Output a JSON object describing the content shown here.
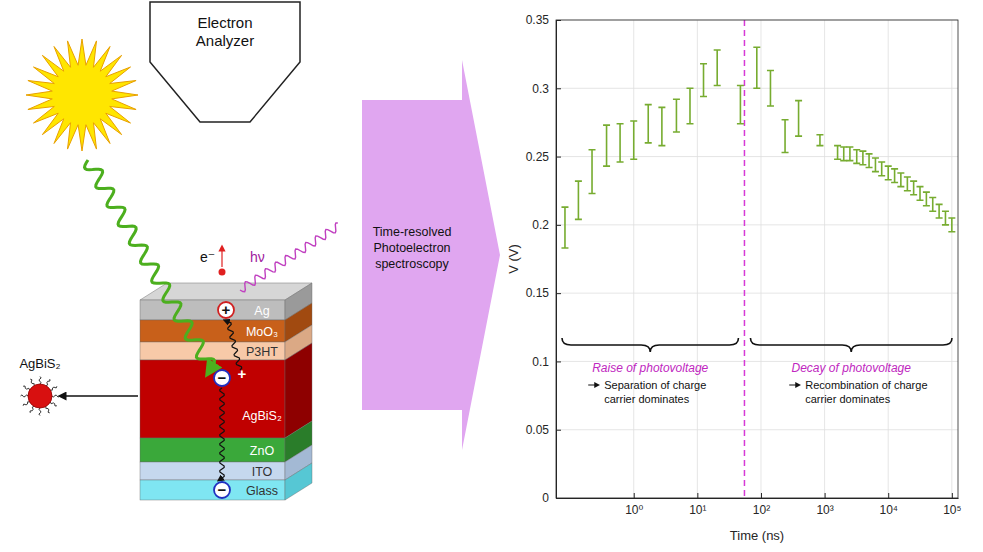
{
  "chart_data": {
    "type": "errorbar",
    "x_label": "Time (ns)",
    "y_label": "V (V)",
    "x": [
      0.083,
      0.135,
      0.221,
      0.374,
      0.61,
      1,
      1.69,
      2.77,
      4.69,
      7.66,
      12.5,
      20.5,
      47.5,
      86,
      141,
      239,
      390,
      845,
      1600,
      2000,
      2500,
      3200,
      4000,
      5000,
      6300,
      7900,
      10000,
      12600,
      15800,
      20000,
      25100,
      31600,
      39800,
      50100,
      63100,
      79400,
      100000
    ],
    "values": [
      0.198,
      0.218,
      0.239,
      0.258,
      0.26,
      0.262,
      0.274,
      0.272,
      0.28,
      0.287,
      0.306,
      0.315,
      0.288,
      0.315,
      0.3,
      0.265,
      0.278,
      0.262,
      0.253,
      0.252,
      0.252,
      0.25,
      0.249,
      0.247,
      0.244,
      0.241,
      0.238,
      0.236,
      0.233,
      0.23,
      0.227,
      0.223,
      0.219,
      0.215,
      0.21,
      0.205,
      0.2
    ],
    "errors": [
      0.015,
      0.014,
      0.016,
      0.015,
      0.014,
      0.014,
      0.014,
      0.014,
      0.012,
      0.013,
      0.012,
      0.013,
      0.014,
      0.015,
      0.013,
      0.012,
      0.013,
      0.004,
      0.005,
      0.005,
      0.005,
      0.005,
      0.005,
      0.005,
      0.005,
      0.005,
      0.005,
      0.005,
      0.005,
      0.005,
      0.005,
      0.005,
      0.005,
      0.005,
      0.005,
      0.005,
      0.005
    ],
    "color": "#77ac30",
    "log": "x",
    "grid": true,
    "xlim": [
      0.06,
      125000
    ],
    "xticks": [
      {
        "value": 1,
        "label": "10⁰"
      },
      {
        "value": 10,
        "label": "10¹"
      },
      {
        "value": 100,
        "label": "10²"
      },
      {
        "value": 1000,
        "label": "10³"
      },
      {
        "value": 10000,
        "label": "10⁴"
      },
      {
        "value": 100000,
        "label": "10⁵"
      }
    ],
    "ylim": [
      0,
      0.35
    ],
    "yticks": [
      0,
      0.05,
      0.1,
      0.15,
      0.2,
      0.25,
      0.3,
      0.35
    ],
    "vline": 55,
    "annotations": [
      {
        "title": "Raise of photovoltage",
        "text": "Separation of charge carrier dominates"
      },
      {
        "title": "Decay of photovoltage",
        "text": "Recombination of charge carrier dominates"
      }
    ]
  },
  "diagram": {
    "analyzer_label": "Electron Analyzer",
    "layers": [
      "Ag",
      "MoO₃",
      "P3HT",
      "AgBiS₂",
      "ZnO",
      "ITO",
      "Glass"
    ],
    "nanoparticle_label": "AgBiS₂",
    "electron_label": "e⁻",
    "photon_label": "hν",
    "hole_symbol": "+",
    "electron_symbol": "−"
  },
  "arrow_label": "Time-resolved Photoelectron spectroscopy"
}
